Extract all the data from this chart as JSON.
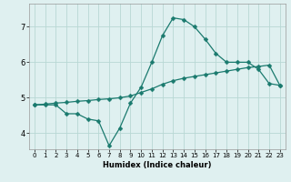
{
  "xlabel": "Humidex (Indice chaleur)",
  "background_color": "#dff0f0",
  "grid_color": "#b8d8d4",
  "line_color": "#1a7a6e",
  "x_ticks": [
    0,
    1,
    2,
    3,
    4,
    5,
    6,
    7,
    8,
    9,
    10,
    11,
    12,
    13,
    14,
    15,
    16,
    17,
    18,
    19,
    20,
    21,
    22,
    23
  ],
  "y_ticks": [
    4,
    5,
    6,
    7
  ],
  "ylim": [
    3.55,
    7.65
  ],
  "xlim": [
    -0.5,
    23.5
  ],
  "series1_x": [
    0,
    1,
    2,
    3,
    4,
    5,
    6,
    7,
    8,
    9,
    10,
    11,
    12,
    13,
    14,
    15,
    16,
    17,
    18,
    19,
    20,
    21,
    22,
    23
  ],
  "series1_y": [
    4.8,
    4.8,
    4.8,
    4.55,
    4.55,
    4.4,
    4.35,
    3.65,
    4.15,
    4.85,
    5.3,
    6.0,
    6.75,
    7.25,
    7.2,
    7.0,
    6.65,
    6.25,
    6.0,
    6.0,
    6.0,
    5.8,
    5.4,
    5.35
  ],
  "series2_x": [
    0,
    1,
    2,
    3,
    4,
    5,
    6,
    7,
    8,
    9,
    10,
    11,
    12,
    13,
    14,
    15,
    16,
    17,
    18,
    19,
    20,
    21,
    22,
    23
  ],
  "series2_y": [
    4.8,
    4.82,
    4.85,
    4.87,
    4.9,
    4.92,
    4.95,
    4.97,
    5.0,
    5.05,
    5.15,
    5.25,
    5.38,
    5.48,
    5.55,
    5.6,
    5.65,
    5.7,
    5.75,
    5.8,
    5.85,
    5.88,
    5.92,
    5.35
  ],
  "marker_size": 2.5,
  "linewidth": 0.9
}
